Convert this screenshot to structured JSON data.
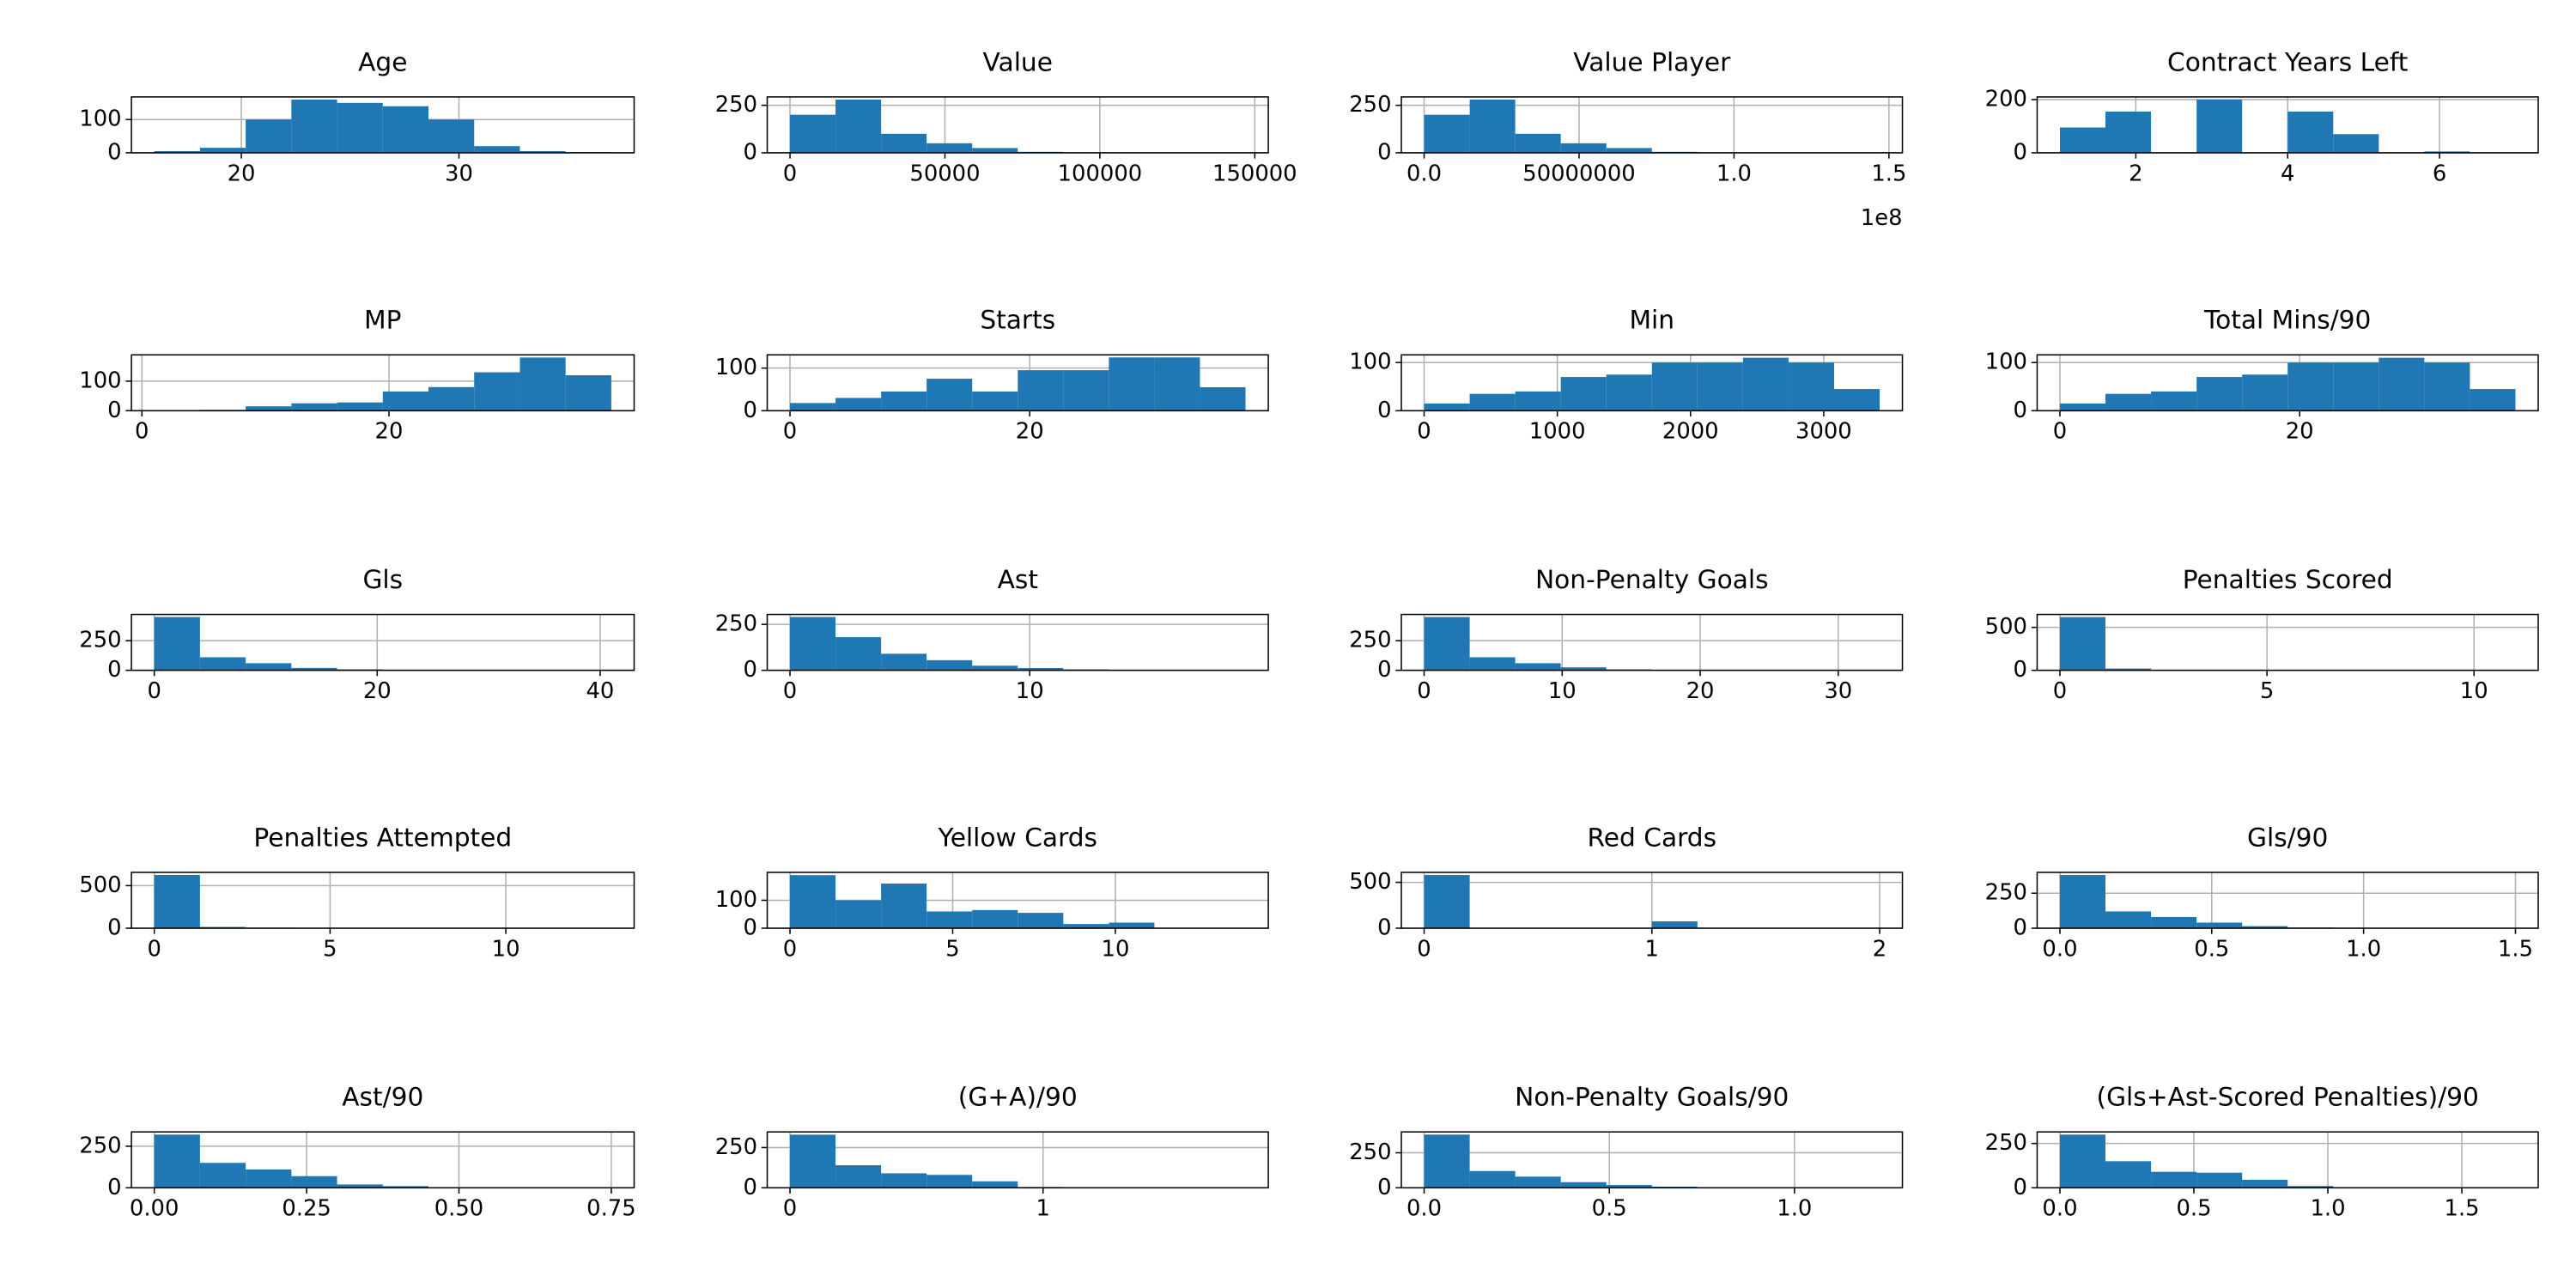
{
  "chart_data": [
    {
      "type": "histogram",
      "title": "Age",
      "bins": [
        16,
        18.1,
        20.2,
        22.3,
        24.4,
        26.5,
        28.6,
        30.7,
        32.8,
        34.9,
        37
      ],
      "counts": [
        5,
        15,
        100,
        160,
        150,
        140,
        100,
        20,
        5,
        2
      ],
      "xlim": [
        14.95,
        38.05
      ],
      "ylim": [
        0,
        168
      ],
      "xticks": [
        20,
        30
      ],
      "yticks": [
        0,
        100
      ],
      "grid": true,
      "color": "#1f77b4"
    },
    {
      "type": "histogram",
      "title": "Value",
      "bins": [
        0,
        14700,
        29400,
        44100,
        58800,
        73500,
        88200,
        102900,
        117600,
        132300,
        147000
      ],
      "counts": [
        200,
        280,
        100,
        50,
        25,
        5,
        2,
        1,
        0,
        1
      ],
      "xlim": [
        -7350,
        154350
      ],
      "ylim": [
        0,
        294
      ],
      "xticks": [
        0,
        50000,
        100000,
        150000
      ],
      "yticks": [
        0,
        250
      ],
      "grid": true,
      "color": "#1f77b4"
    },
    {
      "type": "histogram",
      "title": "Value Player",
      "bins": [
        0,
        14700000,
        29400000,
        44100000,
        58800000,
        73500000,
        88200000,
        102900000,
        117600000,
        132300000,
        147000000
      ],
      "counts": [
        200,
        280,
        100,
        50,
        25,
        5,
        2,
        1,
        0,
        1
      ],
      "xlim": [
        -7350000,
        154350000
      ],
      "ylim": [
        0,
        294
      ],
      "xticks": [
        {
          "value": 0,
          "label": "0.0"
        },
        50000000,
        {
          "value": 100000000,
          "label": "1.0"
        },
        {
          "value": 150000000,
          "label": "1.5"
        }
      ],
      "x_offset_label": "1e8",
      "yticks": [
        0,
        250
      ],
      "grid": true,
      "color": "#1f77b4"
    },
    {
      "type": "histogram",
      "title": "Contract Years Left",
      "bins": [
        1,
        1.6,
        2.2,
        2.8,
        3.4,
        4,
        4.6,
        5.2,
        5.8,
        6.4,
        7
      ],
      "counts": [
        95,
        155,
        0,
        200,
        0,
        155,
        70,
        0,
        5,
        0
      ],
      "xlim": [
        0.7,
        7.3
      ],
      "ylim": [
        0,
        210
      ],
      "xticks": [
        2,
        4,
        6
      ],
      "yticks": [
        0,
        200
      ],
      "grid": true,
      "color": "#1f77b4"
    },
    {
      "type": "histogram",
      "title": "MP",
      "bins": [
        1,
        4.7,
        8.4,
        12.1,
        15.8,
        19.5,
        23.2,
        26.9,
        30.6,
        34.3,
        38
      ],
      "counts": [
        1,
        3,
        15,
        25,
        28,
        65,
        80,
        130,
        180,
        120
      ],
      "xlim": [
        -0.85,
        39.85
      ],
      "ylim": [
        0,
        189
      ],
      "xticks": [
        0,
        20
      ],
      "yticks": [
        0,
        100
      ],
      "grid": true,
      "color": "#1f77b4"
    },
    {
      "type": "histogram",
      "title": "Starts",
      "bins": [
        0,
        3.8,
        7.6,
        11.4,
        15.2,
        19,
        22.8,
        26.6,
        30.4,
        34.2,
        38
      ],
      "counts": [
        18,
        30,
        45,
        75,
        45,
        95,
        95,
        125,
        125,
        55
      ],
      "xlim": [
        -1.9,
        39.9
      ],
      "ylim": [
        0,
        131
      ],
      "xticks": [
        0,
        20
      ],
      "yticks": [
        0,
        100
      ],
      "grid": true,
      "color": "#1f77b4"
    },
    {
      "type": "histogram",
      "title": "Min",
      "bins": [
        0,
        342,
        684,
        1026,
        1368,
        1710,
        2052,
        2394,
        2736,
        3078,
        3420
      ],
      "counts": [
        15,
        35,
        40,
        70,
        75,
        100,
        100,
        110,
        100,
        45
      ],
      "xlim": [
        -171,
        3591
      ],
      "ylim": [
        0,
        116
      ],
      "xticks": [
        0,
        1000,
        2000,
        3000
      ],
      "yticks": [
        0,
        100
      ],
      "grid": true,
      "color": "#1f77b4"
    },
    {
      "type": "histogram",
      "title": "Total Mins/90",
      "bins": [
        0,
        3.8,
        7.6,
        11.4,
        15.2,
        19,
        22.8,
        26.6,
        30.4,
        34.2,
        38
      ],
      "counts": [
        15,
        35,
        40,
        70,
        75,
        100,
        100,
        110,
        100,
        45
      ],
      "xlim": [
        -1.9,
        39.9
      ],
      "ylim": [
        0,
        116
      ],
      "xticks": [
        0,
        20
      ],
      "yticks": [
        0,
        100
      ],
      "grid": true,
      "color": "#1f77b4"
    },
    {
      "type": "histogram",
      "title": "Gls",
      "bins": [
        0,
        4.1,
        8.2,
        12.3,
        16.4,
        20.5,
        24.6,
        28.7,
        32.8,
        36.9,
        41
      ],
      "counts": [
        450,
        110,
        60,
        20,
        8,
        3,
        1,
        0,
        0,
        1
      ],
      "xlim": [
        -2.05,
        43.05
      ],
      "ylim": [
        0,
        472
      ],
      "xticks": [
        0,
        20,
        40
      ],
      "yticks": [
        0,
        250
      ],
      "grid": true,
      "color": "#1f77b4"
    },
    {
      "type": "histogram",
      "title": "Ast",
      "bins": [
        0,
        1.9,
        3.8,
        5.7,
        7.6,
        9.5,
        11.4,
        13.3,
        15.2,
        17.1,
        19
      ],
      "counts": [
        290,
        180,
        90,
        55,
        25,
        12,
        5,
        2,
        0,
        1
      ],
      "xlim": [
        -0.95,
        19.95
      ],
      "ylim": [
        0,
        304
      ],
      "xticks": [
        0,
        10
      ],
      "yticks": [
        0,
        250
      ],
      "grid": true,
      "color": "#1f77b4"
    },
    {
      "type": "histogram",
      "title": "Non-Penalty Goals",
      "bins": [
        0,
        3.3,
        6.6,
        9.9,
        13.2,
        16.5,
        19.8,
        23.1,
        26.4,
        29.7,
        33
      ],
      "counts": [
        450,
        110,
        60,
        25,
        8,
        3,
        1,
        0,
        0,
        1
      ],
      "xlim": [
        -1.65,
        34.65
      ],
      "ylim": [
        0,
        472
      ],
      "xticks": [
        0,
        10,
        20,
        30
      ],
      "yticks": [
        0,
        250
      ],
      "grid": true,
      "color": "#1f77b4"
    },
    {
      "type": "histogram",
      "title": "Penalties Scored",
      "bins": [
        0,
        1.1,
        2.2,
        3.3,
        4.4,
        5.5,
        6.6,
        7.7,
        8.8,
        9.9,
        11
      ],
      "counts": [
        620,
        20,
        6,
        3,
        2,
        1,
        0,
        0,
        0,
        1
      ],
      "xlim": [
        -0.55,
        11.55
      ],
      "ylim": [
        0,
        651
      ],
      "xticks": [
        0,
        5,
        10
      ],
      "yticks": [
        0,
        500
      ],
      "grid": true,
      "color": "#1f77b4"
    },
    {
      "type": "histogram",
      "title": "Penalties Attempted",
      "bins": [
        0,
        1.3,
        2.6,
        3.9,
        5.2,
        6.5,
        7.8,
        9.1,
        10.4,
        11.7,
        13
      ],
      "counts": [
        625,
        15,
        6,
        3,
        2,
        1,
        0,
        0,
        0,
        1
      ],
      "xlim": [
        -0.65,
        13.65
      ],
      "ylim": [
        0,
        656
      ],
      "xticks": [
        0,
        5,
        10
      ],
      "yticks": [
        0,
        500
      ],
      "grid": true,
      "color": "#1f77b4"
    },
    {
      "type": "histogram",
      "title": "Yellow Cards",
      "bins": [
        0,
        1.4,
        2.8,
        4.2,
        5.6,
        7,
        8.4,
        9.8,
        11.2,
        12.6,
        14
      ],
      "counts": [
        190,
        100,
        160,
        60,
        65,
        55,
        15,
        20,
        0,
        1
      ],
      "xlim": [
        -0.7,
        14.7
      ],
      "ylim": [
        0,
        200
      ],
      "xticks": [
        0,
        5,
        10
      ],
      "yticks": [
        0,
        100
      ],
      "grid": true,
      "color": "#1f77b4"
    },
    {
      "type": "histogram",
      "title": "Red Cards",
      "bins": [
        0,
        0.2,
        0.4,
        0.6,
        0.8,
        1,
        1.2,
        1.4,
        1.6,
        1.8,
        2
      ],
      "counts": [
        580,
        0,
        0,
        0,
        0,
        75,
        0,
        0,
        0,
        1
      ],
      "xlim": [
        -0.1,
        2.1
      ],
      "ylim": [
        0,
        609
      ],
      "xticks": [
        0,
        1,
        2
      ],
      "yticks": [
        0,
        500
      ],
      "grid": true,
      "color": "#1f77b4"
    },
    {
      "type": "histogram",
      "title": "Gls/90",
      "bins": [
        0,
        0.15,
        0.3,
        0.45,
        0.6,
        0.75,
        0.9,
        1.05,
        1.2,
        1.35,
        1.5
      ],
      "counts": [
        380,
        120,
        80,
        40,
        15,
        5,
        1,
        0,
        0,
        1
      ],
      "xlim": [
        -0.075,
        1.575
      ],
      "ylim": [
        0,
        399
      ],
      "xticks": [
        {
          "value": 0,
          "label": "0.0"
        },
        0.5,
        {
          "value": 1,
          "label": "1.0"
        },
        1.5
      ],
      "yticks": [
        0,
        250
      ],
      "grid": true,
      "color": "#1f77b4"
    },
    {
      "type": "histogram",
      "title": "Ast/90",
      "bins": [
        0,
        0.075,
        0.15,
        0.225,
        0.3,
        0.375,
        0.45,
        0.525,
        0.6,
        0.675,
        0.75
      ],
      "counts": [
        320,
        150,
        110,
        70,
        20,
        10,
        2,
        0,
        0,
        1
      ],
      "xlim": [
        -0.0375,
        0.7875
      ],
      "ylim": [
        0,
        336
      ],
      "xticks": [
        {
          "value": 0,
          "label": "0.00"
        },
        0.25,
        {
          "value": 0.5,
          "label": "0.50"
        },
        0.75
      ],
      "yticks": [
        0,
        250
      ],
      "grid": true,
      "color": "#1f77b4"
    },
    {
      "type": "histogram",
      "title": "(G+A)/90",
      "bins": [
        0,
        0.18,
        0.36,
        0.54,
        0.72,
        0.9,
        1.08,
        1.26,
        1.44,
        1.62,
        1.8
      ],
      "counts": [
        330,
        140,
        90,
        80,
        40,
        5,
        1,
        0,
        0,
        1
      ],
      "xlim": [
        -0.09,
        1.89
      ],
      "ylim": [
        0,
        347
      ],
      "xticks": [
        0,
        1
      ],
      "yticks": [
        0,
        250
      ],
      "grid": true,
      "color": "#1f77b4"
    },
    {
      "type": "histogram",
      "title": "Non-Penalty Goals/90",
      "bins": [
        0,
        0.123,
        0.246,
        0.369,
        0.492,
        0.615,
        0.738,
        0.861,
        0.984,
        1.107,
        1.23
      ],
      "counts": [
        380,
        120,
        80,
        40,
        20,
        8,
        2,
        0,
        0,
        1
      ],
      "xlim": [
        -0.0615,
        1.2915
      ],
      "ylim": [
        0,
        399
      ],
      "xticks": [
        {
          "value": 0,
          "label": "0.0"
        },
        0.5,
        {
          "value": 1,
          "label": "1.0"
        }
      ],
      "yticks": [
        0,
        250
      ],
      "grid": true,
      "color": "#1f77b4"
    },
    {
      "type": "histogram",
      "title": "(Gls+Ast-Scored Penalties)/90",
      "bins": [
        0,
        0.17,
        0.34,
        0.51,
        0.68,
        0.85,
        1.02,
        1.19,
        1.36,
        1.53,
        1.7
      ],
      "counts": [
        300,
        150,
        90,
        85,
        45,
        10,
        2,
        0,
        0,
        1
      ],
      "xlim": [
        -0.085,
        1.785
      ],
      "ylim": [
        0,
        315
      ],
      "xticks": [
        {
          "value": 0,
          "label": "0.0"
        },
        0.5,
        {
          "value": 1,
          "label": "1.0"
        },
        1.5
      ],
      "yticks": [
        0,
        250
      ],
      "grid": true,
      "color": "#1f77b4"
    }
  ]
}
